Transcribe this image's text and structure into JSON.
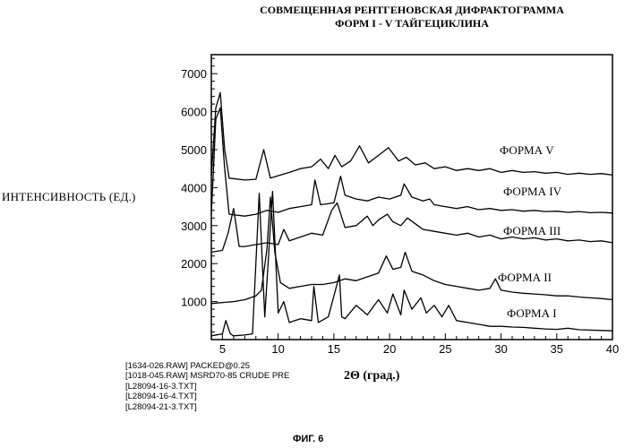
{
  "chart_data": {
    "type": "line",
    "title_line1": "СОВМЕЩЕННАЯ РЕНТГЕНОВСКАЯ ДИФРАКТОГРАММА",
    "title_line2": "ФОРМ I - V ТАЙГЕЦИКЛИНА",
    "ylabel": "ИНТЕНСИВНОСТЬ (ЕД.)",
    "xlabel": "2Θ (град.)",
    "xlim": [
      4,
      40
    ],
    "ylim": [
      0,
      7500
    ],
    "x_ticks": [
      5,
      10,
      15,
      20,
      25,
      30,
      35,
      40
    ],
    "y_ticks": [
      1000,
      2000,
      3000,
      4000,
      5000,
      6000,
      7000
    ],
    "series": [
      {
        "name": "ФОРМА V",
        "x": [
          4,
          4.4,
          4.8,
          5.2,
          5.6,
          7,
          8,
          8.7,
          9.3,
          11,
          12,
          13,
          13.8,
          14.5,
          15.1,
          15.7,
          16.5,
          17.3,
          18.1,
          19,
          19.9,
          20.8,
          21.5,
          22.3,
          23.2,
          24,
          25,
          26,
          27,
          28,
          29,
          30,
          31,
          32,
          33,
          34,
          35,
          36,
          37,
          38,
          39,
          40
        ],
        "y": [
          4300,
          6100,
          6500,
          5000,
          4250,
          4200,
          4220,
          5000,
          4250,
          4400,
          4500,
          4550,
          4750,
          4500,
          4850,
          4550,
          4700,
          5100,
          4650,
          4850,
          5050,
          4700,
          4800,
          4600,
          4650,
          4500,
          4550,
          4450,
          4500,
          4450,
          4500,
          4400,
          4450,
          4400,
          4420,
          4380,
          4400,
          4350,
          4380,
          4350,
          4370,
          4330
        ]
      },
      {
        "name": "ФОРМА IV",
        "x": [
          4,
          4.4,
          4.8,
          5.2,
          5.6,
          7,
          8,
          9,
          10,
          11,
          12,
          13,
          13.3,
          13.8,
          15,
          15.6,
          16,
          17,
          18,
          19,
          20,
          21,
          21.3,
          22,
          23,
          23.6,
          24,
          25,
          26,
          27,
          28,
          29,
          30,
          31,
          32,
          33,
          34,
          35,
          36,
          37,
          38,
          39,
          40
        ],
        "y": [
          3300,
          5800,
          6100,
          4500,
          3300,
          3250,
          3300,
          3400,
          3350,
          3450,
          3500,
          3550,
          4200,
          3550,
          3600,
          4300,
          3800,
          3700,
          3650,
          3750,
          3700,
          3800,
          4100,
          3750,
          3650,
          3700,
          3550,
          3500,
          3450,
          3500,
          3420,
          3450,
          3400,
          3420,
          3380,
          3400,
          3370,
          3380,
          3350,
          3370,
          3340,
          3350,
          3330
        ]
      },
      {
        "name": "ФОРМА III",
        "x": [
          4,
          5,
          5.5,
          6,
          6.5,
          7,
          8,
          9,
          10,
          10.5,
          11,
          12,
          13,
          14,
          14.8,
          15.3,
          16,
          17,
          18,
          18.5,
          19,
          19.8,
          20.3,
          21,
          21.6,
          22.3,
          23,
          24,
          25,
          26,
          27,
          28,
          29,
          30,
          31,
          32,
          33,
          34,
          35,
          36,
          37,
          38,
          39,
          40
        ],
        "y": [
          2300,
          2350,
          2800,
          3450,
          2450,
          2450,
          2500,
          2550,
          2500,
          2900,
          2600,
          2700,
          2800,
          2750,
          3400,
          3600,
          2950,
          3000,
          3250,
          3000,
          3150,
          3300,
          3100,
          3000,
          3200,
          3050,
          2900,
          2850,
          2800,
          2750,
          2800,
          2700,
          2750,
          2650,
          2700,
          2650,
          2680,
          2620,
          2650,
          2600,
          2620,
          2580,
          2600,
          2550
        ]
      },
      {
        "name": "ФОРМА II",
        "x": [
          4,
          6,
          7,
          8,
          8.5,
          9,
          9.3,
          9.7,
          10.2,
          11,
          12,
          13,
          14,
          15,
          16,
          17,
          18,
          19,
          19.7,
          20.3,
          21,
          21.4,
          22,
          23,
          24,
          25,
          26,
          27,
          28,
          29,
          29.5,
          30,
          31,
          32,
          33,
          34,
          35,
          36,
          37,
          38,
          39,
          40
        ],
        "y": [
          950,
          1000,
          1050,
          1150,
          1300,
          2400,
          3750,
          2300,
          1500,
          1350,
          1400,
          1450,
          1450,
          1500,
          1600,
          1550,
          1650,
          1750,
          2200,
          1850,
          1900,
          2300,
          1800,
          1700,
          1550,
          1450,
          1400,
          1350,
          1300,
          1350,
          1600,
          1300,
          1250,
          1220,
          1200,
          1180,
          1150,
          1150,
          1120,
          1100,
          1080,
          1050
        ]
      },
      {
        "name": "ФОРМА I",
        "x": [
          4,
          5,
          5.3,
          5.7,
          6,
          7,
          7.7,
          8.3,
          8.8,
          9.5,
          10,
          10.5,
          11,
          12,
          13,
          13.2,
          13.6,
          14.5,
          15.5,
          15.7,
          16,
          17,
          18,
          19,
          19.8,
          20.3,
          21,
          21.3,
          22,
          22.8,
          23.3,
          24,
          24.7,
          25.3,
          26,
          27,
          28,
          29,
          30,
          31,
          32,
          33,
          34,
          35,
          36,
          37,
          38,
          39,
          40
        ],
        "y": [
          100,
          150,
          500,
          150,
          100,
          120,
          150,
          3850,
          600,
          3900,
          700,
          1000,
          450,
          550,
          500,
          1400,
          450,
          600,
          1700,
          600,
          550,
          900,
          650,
          1050,
          700,
          1200,
          650,
          1300,
          800,
          1100,
          700,
          900,
          600,
          900,
          500,
          450,
          400,
          350,
          350,
          330,
          320,
          300,
          280,
          270,
          300,
          260,
          250,
          240,
          230
        ]
      }
    ],
    "series_labels": [
      "ФОРМА V",
      "ФОРМА IV",
      "ФОРМА III",
      "ФОРМА II",
      "ФОРМА I"
    ],
    "legend": [
      "[1634-026.RAW] PACKED@0.25",
      "[1018-045.RAW] MSRD70-85 CRUDE PRE",
      "[L28094-16-3.TXT]",
      "[L28094-16-4.TXT]",
      "[L28094-21-3.TXT]"
    ],
    "figure_caption": "ФИГ. 6",
    "grid": false
  }
}
